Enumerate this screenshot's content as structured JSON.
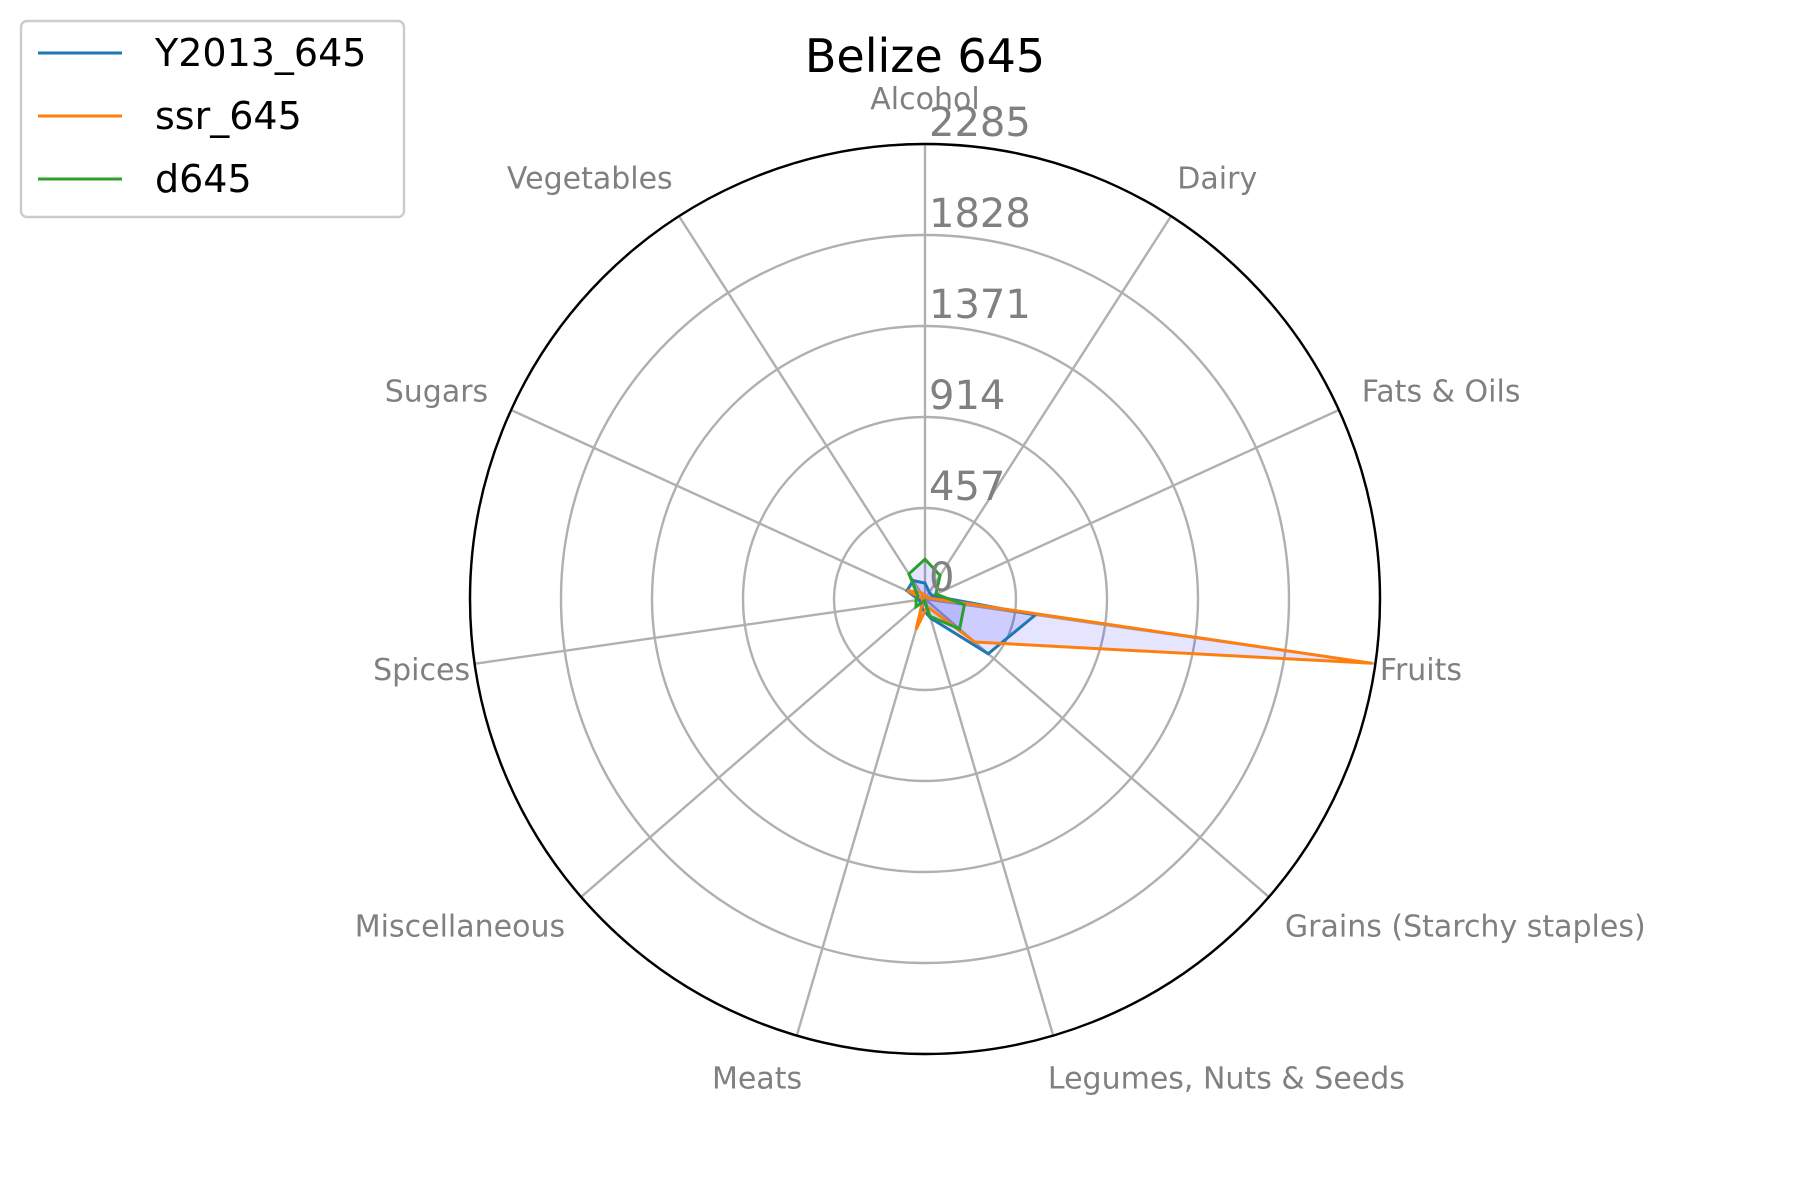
{
  "chart_data": {
    "type": "radar",
    "title": "Belize 645",
    "categories": [
      "Alcohol",
      "Dairy",
      "Fats & Oils",
      "Fruits",
      "Grains (Starchy staples)",
      "Legumes, Nuts & Seeds",
      "Meats",
      "Miscellaneous",
      "Spices",
      "Sugars",
      "Vegetables"
    ],
    "rlim": [
      0,
      2285
    ],
    "rticks": [
      "0",
      "457",
      "914",
      "1371",
      "1828",
      "2285"
    ],
    "rtick_values": [
      0,
      457,
      914,
      1371,
      1828,
      2285
    ],
    "series": [
      {
        "name": "Y2013_645",
        "color": "#1f77b4",
        "values": [
          80,
          40,
          40,
          560,
          420,
          100,
          50,
          30,
          30,
          100,
          110
        ]
      },
      {
        "name": "ssr_645",
        "color": "#ff7f0e",
        "values": [
          15,
          15,
          15,
          2270,
          330,
          40,
          160,
          15,
          5,
          100,
          40
        ]
      },
      {
        "name": "d645",
        "color": "#2ca02c",
        "values": [
          200,
          140,
          60,
          200,
          230,
          90,
          10,
          60,
          45,
          40,
          150
        ]
      }
    ],
    "fill_color": "#0000ff",
    "grid": true,
    "legend_position": "top-left"
  }
}
